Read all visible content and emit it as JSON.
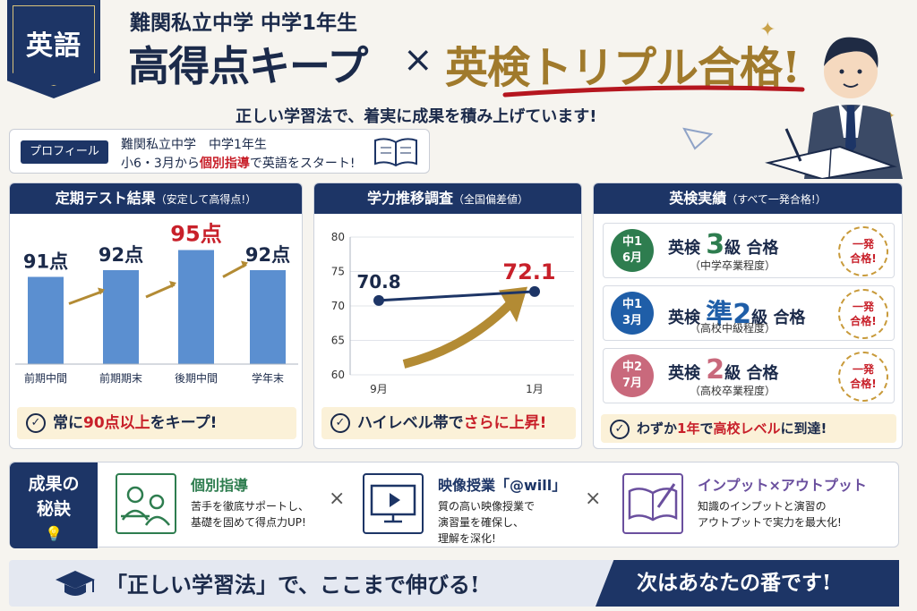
{
  "header": {
    "tag": "英語",
    "subtitle": "難関私立中学 中学1年生",
    "title_left": "高得点キープ",
    "times": "×",
    "title_right": "英検トリプル合格!",
    "tagline": "正しい学習法で、着実に成果を積み上げています!"
  },
  "profile": {
    "label": "プロフィール",
    "line1": "難関私立中学　中学1年生",
    "line2_a": "小6・3月から",
    "line2_b": "個別指導",
    "line2_c": "で英語をスタート!"
  },
  "test_panel": {
    "title": "定期テスト結果",
    "title_note": "（安定して高得点!）",
    "banner_a": "常に",
    "banner_b": "90点以上",
    "banner_c": "をキープ!"
  },
  "trend_panel": {
    "title": "学力推移調査",
    "title_note": "（全国偏差値）",
    "banner_a": "ハイレベル帯で",
    "banner_b": "さらに上昇!"
  },
  "chart_data": [
    {
      "type": "bar",
      "categories": [
        "前期中間",
        "前期期末",
        "後期中間",
        "学年末"
      ],
      "values": [
        91,
        92,
        95,
        92
      ],
      "labels": [
        "91点",
        "92点",
        "95点",
        "92点"
      ],
      "unit": "点",
      "highlight_index": 2,
      "highlight_color": "#c8202a",
      "bar_color": "#5b8fd0"
    },
    {
      "type": "line",
      "x": [
        "9月",
        "1月"
      ],
      "y": [
        70.8,
        72.1
      ],
      "value_labels": [
        "70.8",
        "72.1"
      ],
      "yticks": [
        80,
        75,
        70,
        65,
        60
      ],
      "ylim": [
        60,
        80
      ],
      "line_color": "#1d3566",
      "accent_color": "#c8202a"
    }
  ],
  "eiken_panel": {
    "title": "英検実績",
    "title_note": "（すべて一発合格!）",
    "rows": [
      {
        "grade_year": "中1",
        "grade_month": "6月",
        "color": "#2e7d4f",
        "prefix": "英検",
        "level": "3",
        "level_suffix": "級",
        "result": "合格",
        "note": "（中学卒業程度）",
        "stamp": "一発\n合格!"
      },
      {
        "grade_year": "中1",
        "grade_month": "3月",
        "color": "#1f5ea8",
        "prefix": "英検",
        "level": "準2",
        "level_suffix": "級",
        "result": "合格",
        "note": "（高校中級程度）",
        "stamp": "一発\n合格!"
      },
      {
        "grade_year": "中2",
        "grade_month": "7月",
        "color": "#c9697c",
        "prefix": "英検",
        "level": "2",
        "level_suffix": "級",
        "result": "合格",
        "note": "（高校卒業程度）",
        "stamp": "一発\n合格!"
      }
    ],
    "banner_a": "わずか",
    "banner_b": "1年",
    "banner_c": "で",
    "banner_d": "高校レベル",
    "banner_e": "に到達!"
  },
  "secret": {
    "heading_1": "成果の",
    "heading_2": "秘訣",
    "items": [
      {
        "title": "個別指導",
        "desc1": "苦手を徹底サポートし、",
        "desc2": "基礎を固めて得点力UP!",
        "desc3": "",
        "icon": "tutor-icon",
        "color": "#2e7d4f"
      },
      {
        "title": "映像授業「@will」",
        "desc1": "質の高い映像授業で",
        "desc2": "演習量を確保し、",
        "desc3": "理解を深化!",
        "icon": "video-play-icon",
        "color": "#1d3566"
      },
      {
        "title": "インプット×アウトプット",
        "desc1": "知識のインプットと演習の",
        "desc2": "アウトプットで実力を最大化!",
        "desc3": "",
        "icon": "book-pen-icon",
        "color": "#6a4f9e"
      }
    ],
    "x": "×"
  },
  "footer": {
    "left": "「正しい学習法」で、ここまで伸びる!",
    "right": "次はあなたの番です!"
  }
}
